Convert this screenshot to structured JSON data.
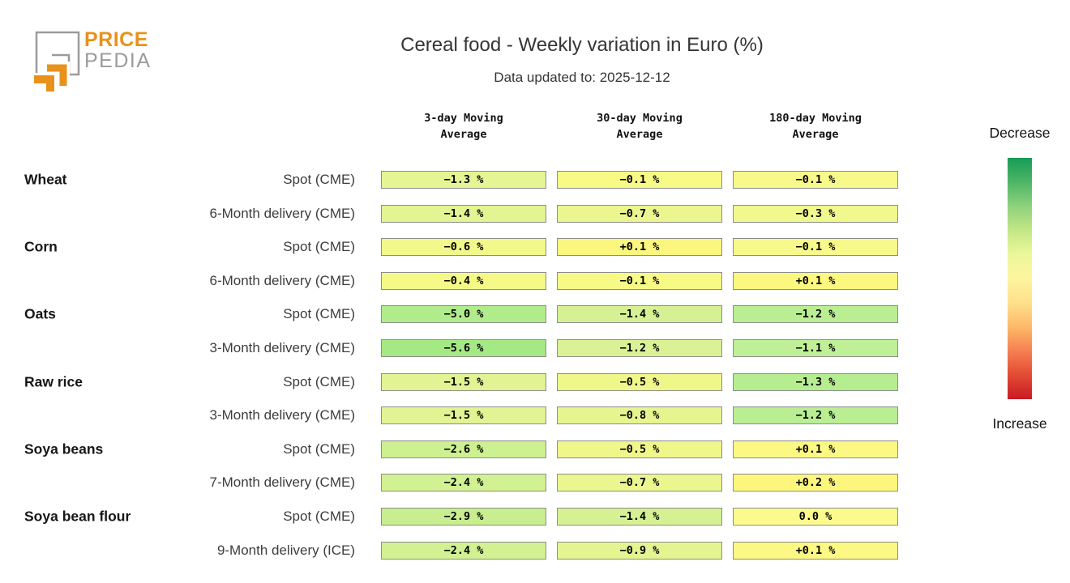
{
  "logo": {
    "line1": "PRICE",
    "line2": "PEDIA",
    "orange": "#e8921c",
    "gray": "#9b9b9b"
  },
  "header": {
    "title": "Cereal food - Weekly variation in Euro (%)",
    "subtitle": "Data updated to: 2025-12-12"
  },
  "columns": [
    {
      "line1": "3-day Moving",
      "line2": "Average"
    },
    {
      "line1": "30-day Moving",
      "line2": "Average"
    },
    {
      "line1": "180-day Moving",
      "line2": "Average"
    }
  ],
  "rows": [
    {
      "group": "Wheat",
      "label": "Spot (CME)",
      "cells": [
        {
          "text": "−1.3 %",
          "bg": "#e5f593"
        },
        {
          "text": "−0.1 %",
          "bg": "#f8fa86"
        },
        {
          "text": "−0.1 %",
          "bg": "#f7f98a"
        }
      ]
    },
    {
      "group": "",
      "label": "6-Month delivery (CME)",
      "cells": [
        {
          "text": "−1.4 %",
          "bg": "#e3f492"
        },
        {
          "text": "−0.7 %",
          "bg": "#ebf68f"
        },
        {
          "text": "−0.3 %",
          "bg": "#f0f88e"
        }
      ]
    },
    {
      "group": "Corn",
      "label": "Spot (CME)",
      "cells": [
        {
          "text": "−0.6 %",
          "bg": "#f2f88a"
        },
        {
          "text": "+0.1 %",
          "bg": "#fbf67e"
        },
        {
          "text": "−0.1 %",
          "bg": "#f7f98a"
        }
      ]
    },
    {
      "group": "",
      "label": "6-Month delivery (CME)",
      "cells": [
        {
          "text": "−0.4 %",
          "bg": "#f5f986"
        },
        {
          "text": "−0.1 %",
          "bg": "#f8fa86"
        },
        {
          "text": "+0.1 %",
          "bg": "#fcf77f"
        }
      ]
    },
    {
      "group": "Oats",
      "label": "Spot (CME)",
      "cells": [
        {
          "text": "−5.0 %",
          "bg": "#b1ec8c"
        },
        {
          "text": "−1.4 %",
          "bg": "#d5f193"
        },
        {
          "text": "−1.2 %",
          "bg": "#b9ee93"
        }
      ]
    },
    {
      "group": "",
      "label": "3-Month delivery (CME)",
      "cells": [
        {
          "text": "−5.6 %",
          "bg": "#a5e984"
        },
        {
          "text": "−1.2 %",
          "bg": "#daf295"
        },
        {
          "text": "−1.1 %",
          "bg": "#bfef97"
        }
      ]
    },
    {
      "group": "Raw rice",
      "label": "Spot (CME)",
      "cells": [
        {
          "text": "−1.5 %",
          "bg": "#e1f392"
        },
        {
          "text": "−0.5 %",
          "bg": "#eff78b"
        },
        {
          "text": "−1.3 %",
          "bg": "#b6ed91"
        }
      ]
    },
    {
      "group": "",
      "label": "3-Month delivery (CME)",
      "cells": [
        {
          "text": "−1.5 %",
          "bg": "#e1f392"
        },
        {
          "text": "−0.8 %",
          "bg": "#e7f590"
        },
        {
          "text": "−1.2 %",
          "bg": "#b9ee93"
        }
      ]
    },
    {
      "group": "Soya beans",
      "label": "Spot (CME)",
      "cells": [
        {
          "text": "−2.6 %",
          "bg": "#cdf091"
        },
        {
          "text": "−0.5 %",
          "bg": "#eff78b"
        },
        {
          "text": "+0.1 %",
          "bg": "#fcf884"
        }
      ]
    },
    {
      "group": "",
      "label": "7-Month delivery (CME)",
      "cells": [
        {
          "text": "−2.4 %",
          "bg": "#d2f192"
        },
        {
          "text": "−0.7 %",
          "bg": "#ebf68f"
        },
        {
          "text": "+0.2 %",
          "bg": "#fcf67d"
        }
      ]
    },
    {
      "group": "Soya bean flour",
      "label": "Spot (CME)",
      "cells": [
        {
          "text": "−2.9 %",
          "bg": "#c8ee8f"
        },
        {
          "text": "−1.4 %",
          "bg": "#d5f193"
        },
        {
          "text": "0.0 %",
          "bg": "#fdfa8d"
        }
      ]
    },
    {
      "group": "",
      "label": "9-Month delivery (ICE)",
      "cells": [
        {
          "text": "−2.4 %",
          "bg": "#d2f192"
        },
        {
          "text": "−0.9 %",
          "bg": "#e4f491"
        },
        {
          "text": "+0.1 %",
          "bg": "#fcf884"
        }
      ]
    }
  ],
  "legend": {
    "top_label": "Decrease",
    "bottom_label": "Increase",
    "gradient": [
      "#169c55",
      "#4db566",
      "#8ed27c",
      "#c3e687",
      "#ecf79c",
      "#fdf4a0",
      "#fee08b",
      "#fdb96a",
      "#f58051",
      "#e34a33",
      "#c91a25"
    ]
  },
  "chart_data": {
    "type": "heatmap",
    "title": "Cereal food - Weekly variation in Euro (%)",
    "subtitle": "Data updated to: 2025-12-12",
    "columns": [
      "3-day Moving Average",
      "30-day Moving Average",
      "180-day Moving Average"
    ],
    "unit": "%",
    "rows": [
      {
        "group": "Wheat",
        "series": "Spot (CME)",
        "values": [
          -1.3,
          -0.1,
          -0.1
        ]
      },
      {
        "group": "Wheat",
        "series": "6-Month delivery (CME)",
        "values": [
          -1.4,
          -0.7,
          -0.3
        ]
      },
      {
        "group": "Corn",
        "series": "Spot (CME)",
        "values": [
          -0.6,
          0.1,
          -0.1
        ]
      },
      {
        "group": "Corn",
        "series": "6-Month delivery (CME)",
        "values": [
          -0.4,
          -0.1,
          0.1
        ]
      },
      {
        "group": "Oats",
        "series": "Spot (CME)",
        "values": [
          -5.0,
          -1.4,
          -1.2
        ]
      },
      {
        "group": "Oats",
        "series": "3-Month delivery (CME)",
        "values": [
          -5.6,
          -1.2,
          -1.1
        ]
      },
      {
        "group": "Raw rice",
        "series": "Spot (CME)",
        "values": [
          -1.5,
          -0.5,
          -1.3
        ]
      },
      {
        "group": "Raw rice",
        "series": "3-Month delivery (CME)",
        "values": [
          -1.5,
          -0.8,
          -1.2
        ]
      },
      {
        "group": "Soya beans",
        "series": "Spot (CME)",
        "values": [
          -2.6,
          -0.5,
          0.1
        ]
      },
      {
        "group": "Soya beans",
        "series": "7-Month delivery (CME)",
        "values": [
          -2.4,
          -0.7,
          0.2
        ]
      },
      {
        "group": "Soya bean flour",
        "series": "Spot (CME)",
        "values": [
          -2.9,
          -1.4,
          0.0
        ]
      },
      {
        "group": "Soya bean flour",
        "series": "9-Month delivery (ICE)",
        "values": [
          -2.4,
          -0.9,
          0.1
        ]
      }
    ],
    "colorscale": "green (decrease) to yellow to red (increase), normalized per column",
    "legend": {
      "top": "Decrease",
      "bottom": "Increase",
      "position": "right"
    }
  }
}
